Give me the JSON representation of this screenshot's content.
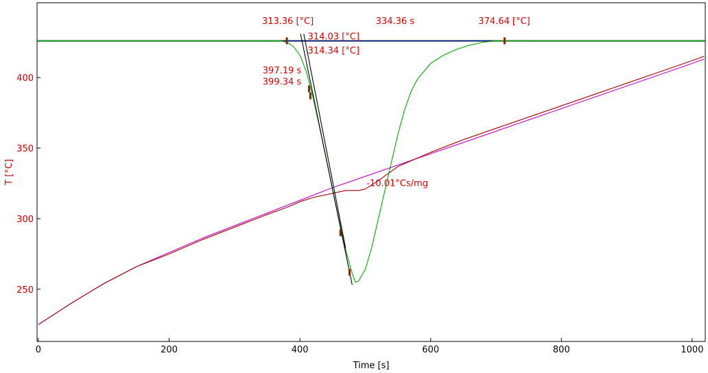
{
  "chart_data": {
    "type": "line",
    "xlabel": "Time [s]",
    "ylabel": "T  [°C]",
    "xlim": [
      -2,
      1020
    ],
    "ylim": [
      213,
      453
    ],
    "xticks": [
      0,
      200,
      400,
      600,
      800,
      1000
    ],
    "yticks": [
      250,
      300,
      350,
      400
    ],
    "grid": false,
    "colors": {
      "axis_y_text": "#cc0000",
      "baseline": "#0000cc",
      "baseline_dark": "#004400",
      "green": "#00aa00",
      "magenta": "#cc00cc",
      "dark_red": "#aa0000",
      "tangent": "#000000",
      "marker": "#7a2a00",
      "annotation": "#dd0000"
    },
    "series": [
      {
        "color": "#cc00cc",
        "x": [
          0,
          50,
          100,
          150,
          200,
          250,
          300,
          350,
          400,
          450,
          500,
          550,
          600,
          650,
          700,
          750,
          800,
          850,
          900,
          950,
          1000,
          1018
        ],
        "y": [
          225,
          240,
          254,
          266,
          276,
          286,
          295,
          304,
          313,
          322,
          330,
          338,
          346,
          354,
          362,
          370,
          378,
          386,
          394,
          402,
          410,
          413
        ]
      },
      {
        "color": "#aa0000",
        "x": [
          0,
          50,
          100,
          150,
          200,
          250,
          300,
          350,
          380,
          400,
          420,
          450,
          470,
          490,
          500,
          520,
          550,
          600,
          650,
          700,
          750,
          800,
          850,
          900,
          950,
          1000,
          1018
        ],
        "y": [
          225,
          240,
          254,
          266,
          275,
          285,
          294,
          303,
          308,
          312,
          315,
          318,
          320,
          320,
          321,
          327,
          337,
          347,
          356,
          364,
          372,
          380,
          388,
          396,
          404,
          412,
          415
        ]
      },
      {
        "color": "#00aa00",
        "x": [
          -2,
          370,
          380,
          390,
          400,
          410,
          420,
          430,
          440,
          450,
          460,
          470,
          480,
          485,
          490,
          500,
          510,
          520,
          530,
          540,
          550,
          560,
          570,
          580,
          600,
          620,
          640,
          660,
          680,
          700,
          715,
          750,
          1020
        ],
        "y": [
          426,
          426,
          425,
          422,
          416,
          404,
          386,
          365,
          343,
          321,
          299,
          278,
          261,
          255,
          256,
          264,
          280,
          300,
          320,
          340,
          360,
          377,
          390,
          399,
          410,
          416,
          420,
          423,
          425,
          426,
          426,
          426,
          426
        ]
      },
      {
        "color": "#000000",
        "x": [
          401,
          480
        ],
        "y": [
          431,
          253
        ]
      },
      {
        "color": "#000000",
        "x": [
          406,
          470
        ],
        "y": [
          431,
          279
        ]
      }
    ],
    "baseline_y": 426,
    "markers": [
      {
        "x": 380,
        "y": 426
      },
      {
        "x": 414,
        "y": 392
      },
      {
        "x": 416,
        "y": 387
      },
      {
        "x": 462,
        "y": 290
      },
      {
        "x": 476,
        "y": 262
      },
      {
        "x": 713,
        "y": 426
      }
    ],
    "annotations": [
      {
        "text": "313.36 [°C]",
        "x": 342,
        "y": 438
      },
      {
        "text": "334.36 s",
        "x": 516,
        "y": 438
      },
      {
        "text": "374.64 [°C]",
        "x": 673,
        "y": 438
      },
      {
        "text": "314.03 [°C]",
        "x": 412,
        "y": 427
      },
      {
        "text": "314.34 [°C]",
        "x": 412,
        "y": 417
      },
      {
        "text": "397.19 s",
        "x": 343,
        "y": 403
      },
      {
        "text": "399.34 s",
        "x": 343,
        "y": 395
      },
      {
        "text": "-10.01°Cs/mg",
        "x": 502,
        "y": 323
      }
    ]
  }
}
